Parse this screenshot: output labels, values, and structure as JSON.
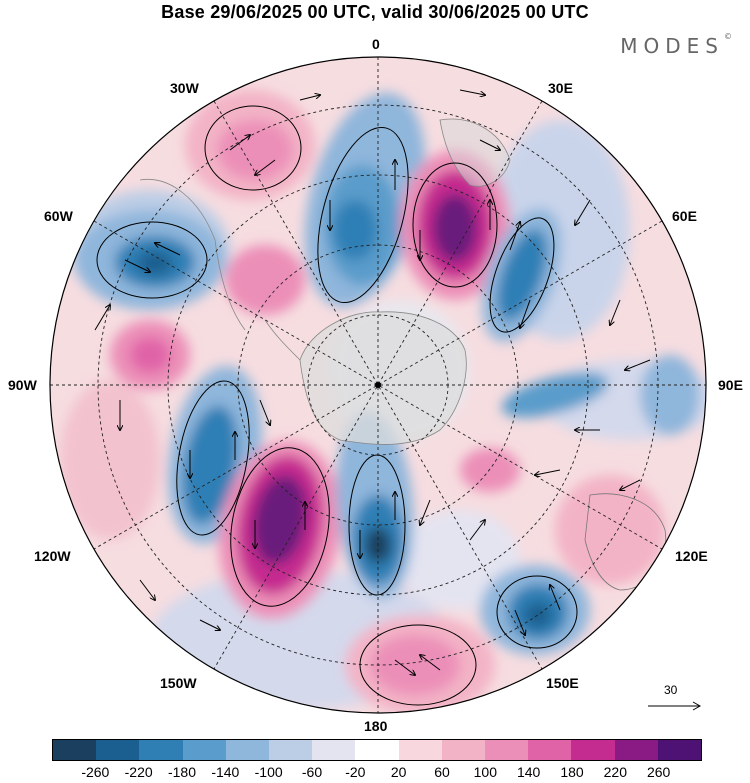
{
  "title": "Base 29/06/2025 00 UTC, valid 30/06/2025 00 UTC",
  "brand": "MODES",
  "brand_mark": "©",
  "longitude_labels": {
    "top": "0",
    "bottom": "180",
    "left_90": "90W",
    "right_90": "90E",
    "w30": "30W",
    "e30": "30E",
    "w60": "60W",
    "e60": "60E",
    "w120": "120W",
    "e120": "120E",
    "w150": "150W",
    "e150": "150E"
  },
  "reference_vector": {
    "label": "30"
  },
  "colorbar": {
    "ticks": [
      "-260",
      "-220",
      "-180",
      "-140",
      "-100",
      "-60",
      "-20",
      "20",
      "60",
      "100",
      "140",
      "180",
      "220",
      "260"
    ],
    "colors": [
      "#1b3f5e",
      "#1a5f8f",
      "#2f7fb5",
      "#5a9ccb",
      "#8fb6db",
      "#bccde6",
      "#e4e4f1",
      "#ffffff",
      "#f8d8de",
      "#f3b3c6",
      "#ec8fb8",
      "#e063a8",
      "#c52c8f",
      "#8a1a84",
      "#4d1273"
    ]
  },
  "map_features": {
    "center": "south-pole",
    "anomaly_centers": [
      {
        "lon_label": "0",
        "sign": "negative"
      },
      {
        "lon_label": "30E",
        "sign": "positive"
      },
      {
        "lon_label": "60E",
        "sign": "negative"
      },
      {
        "lon_label": "60W",
        "sign": "negative"
      },
      {
        "lon_label": "30W",
        "sign": "positive"
      },
      {
        "lon_label": "120W",
        "sign": "negative"
      },
      {
        "lon_label": "150W",
        "sign": "positive"
      },
      {
        "lon_label": "180",
        "sign": "negative"
      },
      {
        "lon_label": "150E",
        "sign": "negative"
      },
      {
        "lon_label": "180",
        "sign": "positive"
      }
    ]
  }
}
